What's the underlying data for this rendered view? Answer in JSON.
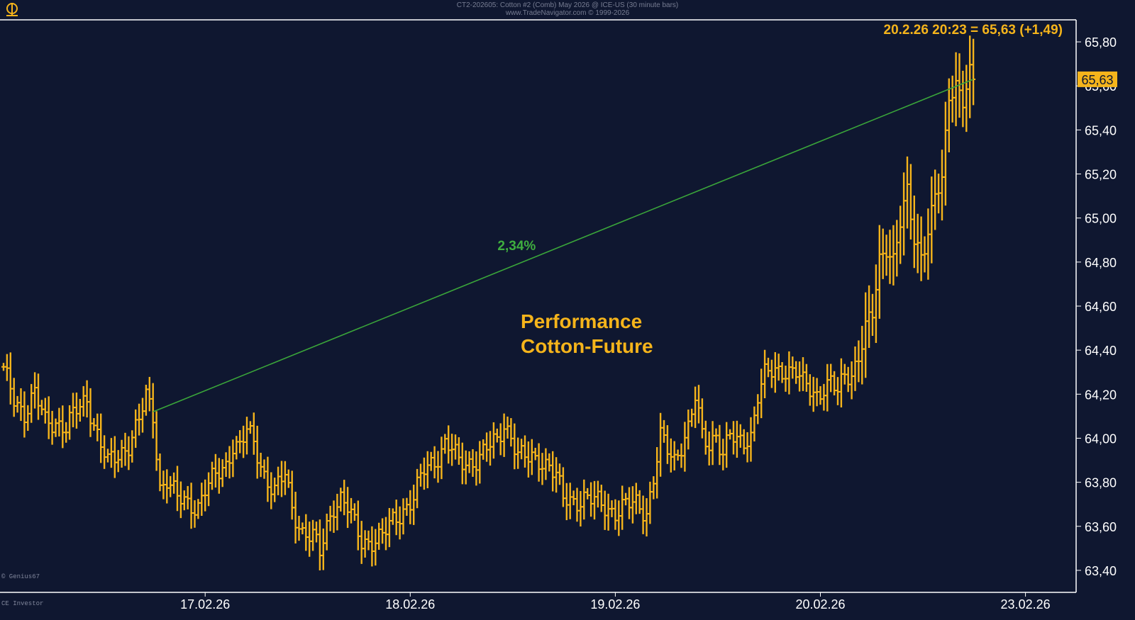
{
  "header": {
    "title": "CT2-202605: Cotton #2 (Comb) May 2026 @ ICE-US (30 minute bars)",
    "copyright": "www.TradeNavigator.com © 1999-2026"
  },
  "watermark": {
    "left_bottom": "© Genius67",
    "footer": "CE Investor"
  },
  "chart_data": {
    "type": "ohlc",
    "title": "Performance\nCotton-Future",
    "last_label": "20.2.26 20:23 = 65,63 (+1,49)",
    "last_price": 65.63,
    "last_price_label": "65,63",
    "ylim": [
      63.3,
      65.9
    ],
    "y_ticks": [
      63.4,
      63.6,
      63.8,
      64.0,
      64.2,
      64.4,
      64.6,
      64.8,
      65.0,
      65.2,
      65.4,
      65.6,
      65.8
    ],
    "y_tick_labels": [
      "63,40",
      "63,60",
      "63,80",
      "64,00",
      "64,20",
      "64,40",
      "64,60",
      "64,80",
      "65,00",
      "65,20",
      "65,40",
      "65,60",
      "65,80"
    ],
    "x_tick_labels": [
      "17.02.26",
      "18.02.26",
      "19.02.26",
      "20.02.26",
      "23.02.26"
    ],
    "x_tick_bar_index": [
      58,
      117,
      176,
      235,
      294
    ],
    "bar_count": 280,
    "trendline": {
      "from_bar": 43,
      "from_value": 64.12,
      "to_bar": 279,
      "to_value": 65.63,
      "label": "2,34%",
      "color": "#3aa53a"
    },
    "colors": {
      "bars": "#f5b41b",
      "background": "#0f1730",
      "axis": "#ffffff",
      "last_box_text": "#0f1730"
    },
    "keypoints": [
      [
        0,
        64.3
      ],
      [
        3,
        64.18
      ],
      [
        6,
        64.12
      ],
      [
        9,
        64.2
      ],
      [
        12,
        64.07
      ],
      [
        15,
        64.08
      ],
      [
        18,
        64.05
      ],
      [
        21,
        64.12
      ],
      [
        24,
        64.18
      ],
      [
        27,
        64.02
      ],
      [
        30,
        63.88
      ],
      [
        33,
        63.92
      ],
      [
        36,
        63.98
      ],
      [
        39,
        64.08
      ],
      [
        41,
        64.18
      ],
      [
        43,
        64.1
      ],
      [
        45,
        63.78
      ],
      [
        47,
        63.82
      ],
      [
        50,
        63.72
      ],
      [
        53,
        63.7
      ],
      [
        56,
        63.7
      ],
      [
        58,
        63.77
      ],
      [
        61,
        63.82
      ],
      [
        64,
        63.88
      ],
      [
        66,
        63.98
      ],
      [
        68,
        63.96
      ],
      [
        70,
        64.03
      ],
      [
        72,
        63.97
      ],
      [
        75,
        63.84
      ],
      [
        78,
        63.76
      ],
      [
        81,
        63.83
      ],
      [
        83,
        63.68
      ],
      [
        86,
        63.58
      ],
      [
        89,
        63.55
      ],
      [
        91,
        63.47
      ],
      [
        93,
        63.6
      ],
      [
        95,
        63.7
      ],
      [
        97,
        63.73
      ],
      [
        99,
        63.68
      ],
      [
        101,
        63.6
      ],
      [
        103,
        63.53
      ],
      [
        106,
        63.54
      ],
      [
        109,
        63.55
      ],
      [
        112,
        63.62
      ],
      [
        115,
        63.68
      ],
      [
        118,
        63.73
      ],
      [
        121,
        63.85
      ],
      [
        124,
        63.9
      ],
      [
        127,
        63.98
      ],
      [
        129,
        63.95
      ],
      [
        131,
        63.88
      ],
      [
        134,
        63.89
      ],
      [
        137,
        63.92
      ],
      [
        139,
        63.95
      ],
      [
        142,
        63.98
      ],
      [
        144,
        64.07
      ],
      [
        146,
        64.02
      ],
      [
        148,
        63.92
      ],
      [
        151,
        63.9
      ],
      [
        154,
        63.91
      ],
      [
        157,
        63.88
      ],
      [
        159,
        63.82
      ],
      [
        161,
        63.72
      ],
      [
        164,
        63.72
      ],
      [
        167,
        63.73
      ],
      [
        170,
        63.71
      ],
      [
        173,
        63.69
      ],
      [
        176,
        63.67
      ],
      [
        179,
        63.69
      ],
      [
        182,
        63.7
      ],
      [
        185,
        63.67
      ],
      [
        187,
        63.82
      ],
      [
        189,
        64.0
      ],
      [
        191,
        63.94
      ],
      [
        193,
        63.9
      ],
      [
        195,
        63.98
      ],
      [
        197,
        64.05
      ],
      [
        199,
        64.18
      ],
      [
        201,
        64.0
      ],
      [
        203,
        63.97
      ],
      [
        205,
        64.03
      ],
      [
        207,
        63.93
      ],
      [
        209,
        64.01
      ],
      [
        211,
        63.97
      ],
      [
        213,
        63.99
      ],
      [
        215,
        64.02
      ],
      [
        217,
        64.2
      ],
      [
        219,
        64.28
      ],
      [
        222,
        64.3
      ],
      [
        225,
        64.32
      ],
      [
        228,
        64.3
      ],
      [
        230,
        64.24
      ],
      [
        232,
        64.22
      ],
      [
        234,
        64.2
      ],
      [
        236,
        64.24
      ],
      [
        238,
        64.25
      ],
      [
        240,
        64.2
      ],
      [
        242,
        64.28
      ],
      [
        244,
        64.3
      ],
      [
        246,
        64.38
      ],
      [
        248,
        64.5
      ],
      [
        250,
        64.55
      ],
      [
        252,
        64.8
      ],
      [
        254,
        64.88
      ],
      [
        256,
        64.82
      ],
      [
        258,
        64.98
      ],
      [
        260,
        65.1
      ],
      [
        262,
        64.9
      ],
      [
        264,
        64.84
      ],
      [
        266,
        64.95
      ],
      [
        268,
        65.1
      ],
      [
        270,
        65.15
      ],
      [
        272,
        65.55
      ],
      [
        274,
        65.62
      ],
      [
        276,
        65.55
      ],
      [
        278,
        65.65
      ],
      [
        279,
        65.63
      ]
    ]
  }
}
